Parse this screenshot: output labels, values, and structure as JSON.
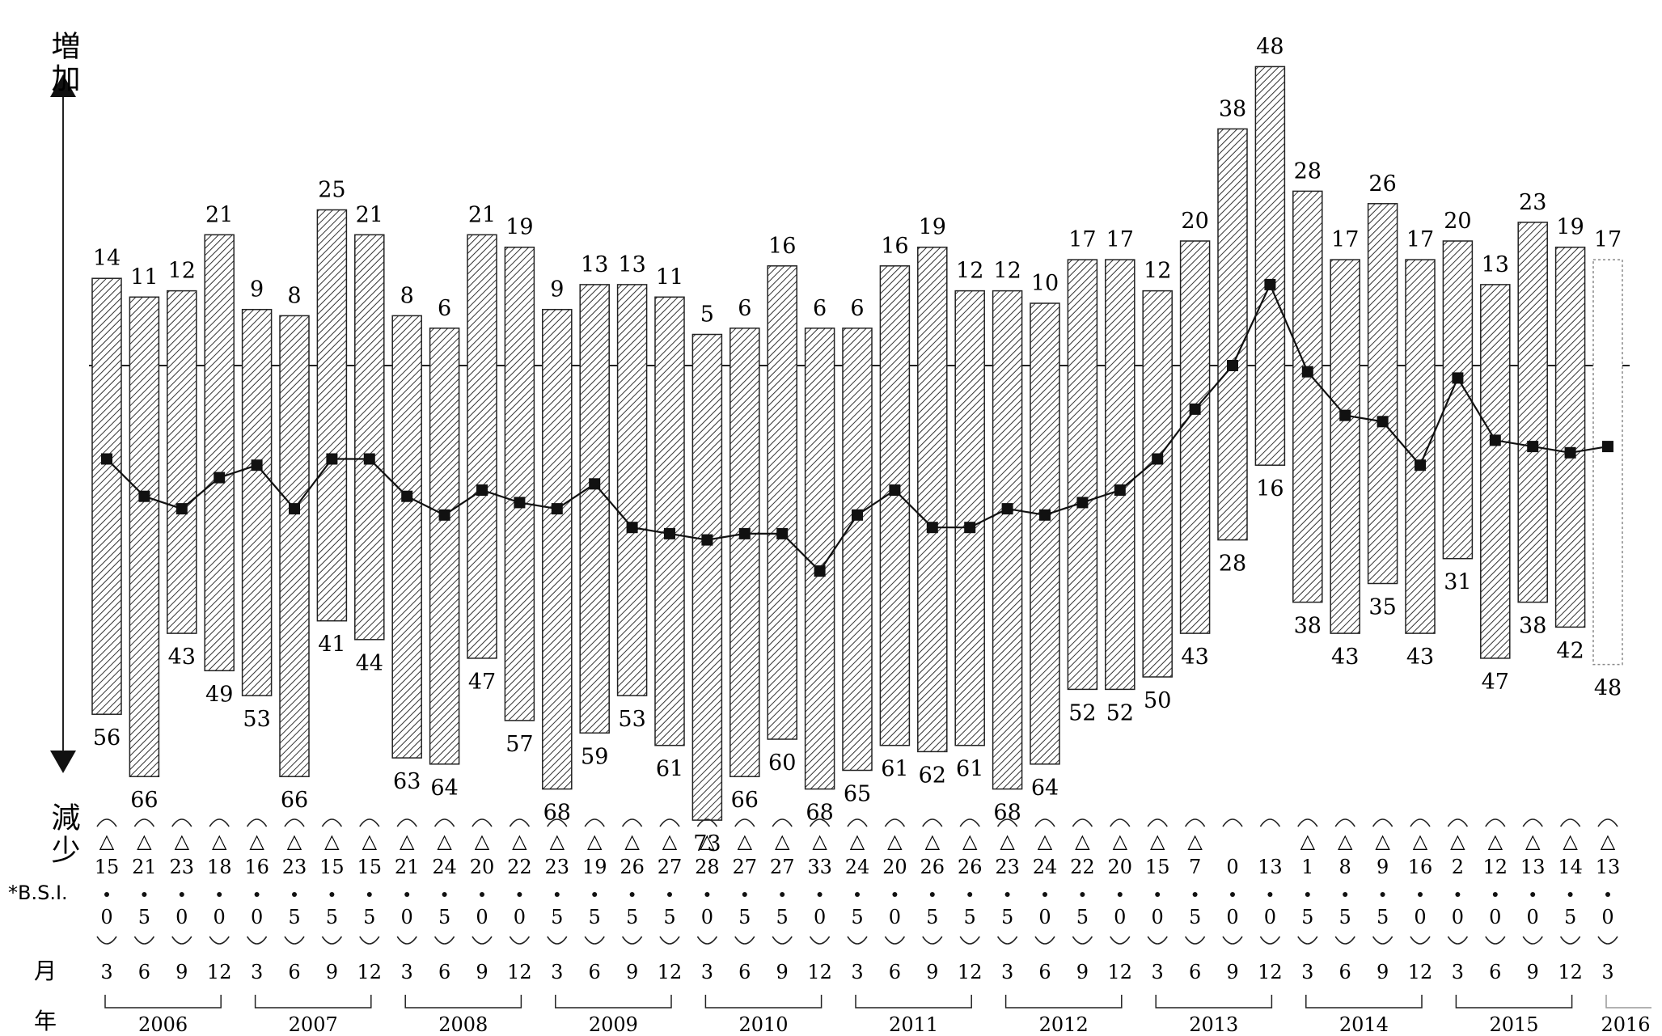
{
  "chart_data": {
    "type": "bar",
    "axis_labels": {
      "up": "増加",
      "down": "減少",
      "bsi": "*B.S.I.",
      "month": "月",
      "year": "年"
    },
    "periods": [
      {
        "m": "3",
        "y": "2006"
      },
      {
        "m": "6",
        "y": "2006"
      },
      {
        "m": "9",
        "y": "2006"
      },
      {
        "m": "12",
        "y": "2006"
      },
      {
        "m": "3",
        "y": "2007"
      },
      {
        "m": "6",
        "y": "2007"
      },
      {
        "m": "9",
        "y": "2007"
      },
      {
        "m": "12",
        "y": "2007"
      },
      {
        "m": "3",
        "y": "2008"
      },
      {
        "m": "6",
        "y": "2008"
      },
      {
        "m": "9",
        "y": "2008"
      },
      {
        "m": "12",
        "y": "2008"
      },
      {
        "m": "3",
        "y": "2009"
      },
      {
        "m": "6",
        "y": "2009"
      },
      {
        "m": "9",
        "y": "2009"
      },
      {
        "m": "12",
        "y": "2009"
      },
      {
        "m": "3",
        "y": "2010"
      },
      {
        "m": "6",
        "y": "2010"
      },
      {
        "m": "9",
        "y": "2010"
      },
      {
        "m": "12",
        "y": "2010"
      },
      {
        "m": "3",
        "y": "2011"
      },
      {
        "m": "6",
        "y": "2011"
      },
      {
        "m": "9",
        "y": "2011"
      },
      {
        "m": "12",
        "y": "2011"
      },
      {
        "m": "3",
        "y": "2012"
      },
      {
        "m": "6",
        "y": "2012"
      },
      {
        "m": "9",
        "y": "2012"
      },
      {
        "m": "12",
        "y": "2012"
      },
      {
        "m": "3",
        "y": "2013"
      },
      {
        "m": "6",
        "y": "2013"
      },
      {
        "m": "9",
        "y": "2013"
      },
      {
        "m": "12",
        "y": "2013"
      },
      {
        "m": "3",
        "y": "2014"
      },
      {
        "m": "6",
        "y": "2014"
      },
      {
        "m": "9",
        "y": "2014"
      },
      {
        "m": "12",
        "y": "2014"
      },
      {
        "m": "3",
        "y": "2015"
      },
      {
        "m": "6",
        "y": "2015"
      },
      {
        "m": "9",
        "y": "2015"
      },
      {
        "m": "12",
        "y": "2015"
      },
      {
        "m": "3",
        "y": "2016"
      }
    ],
    "years": [
      "2006",
      "2007",
      "2008",
      "2009",
      "2010",
      "2011",
      "2012",
      "2013",
      "2014",
      "2015",
      "2016"
    ],
    "increase": [
      14,
      11,
      12,
      21,
      9,
      8,
      25,
      21,
      8,
      6,
      21,
      19,
      9,
      13,
      13,
      11,
      5,
      6,
      16,
      6,
      6,
      16,
      19,
      12,
      12,
      10,
      17,
      17,
      12,
      20,
      38,
      48,
      28,
      17,
      26,
      17,
      20,
      13,
      23,
      19,
      17
    ],
    "decrease": [
      56,
      66,
      43,
      49,
      53,
      66,
      41,
      44,
      63,
      64,
      47,
      57,
      68,
      59,
      53,
      61,
      73,
      66,
      60,
      68,
      65,
      61,
      62,
      61,
      68,
      64,
      52,
      52,
      50,
      43,
      28,
      16,
      38,
      43,
      35,
      43,
      31,
      47,
      38,
      42,
      48
    ],
    "bsi": [
      -15,
      -21,
      -23,
      -18,
      -16,
      -23,
      -15,
      -15,
      -21,
      -24,
      -20,
      -22,
      -23,
      -19,
      -26,
      -27,
      -28,
      -27,
      -27,
      -33,
      -24,
      -20,
      -26,
      -26,
      -23,
      -24,
      -22,
      -20,
      -15,
      -7,
      0,
      13,
      -1,
      -8,
      -9,
      -16,
      -2,
      -12,
      -13,
      -14,
      -13
    ],
    "bsi_labels": [
      {
        "tri": "△",
        "int": "15",
        "dec": "0"
      },
      {
        "tri": "△",
        "int": "21",
        "dec": "5"
      },
      {
        "tri": "△",
        "int": "23",
        "dec": "0"
      },
      {
        "tri": "△",
        "int": "18",
        "dec": "0"
      },
      {
        "tri": "△",
        "int": "16",
        "dec": "0"
      },
      {
        "tri": "△",
        "int": "23",
        "dec": "5"
      },
      {
        "tri": "△",
        "int": "15",
        "dec": "5"
      },
      {
        "tri": "△",
        "int": "15",
        "dec": "5"
      },
      {
        "tri": "△",
        "int": "21",
        "dec": "0"
      },
      {
        "tri": "△",
        "int": "24",
        "dec": "5"
      },
      {
        "tri": "△",
        "int": "20",
        "dec": "0"
      },
      {
        "tri": "△",
        "int": "22",
        "dec": "0"
      },
      {
        "tri": "△",
        "int": "23",
        "dec": "5"
      },
      {
        "tri": "△",
        "int": "19",
        "dec": "5"
      },
      {
        "tri": "△",
        "int": "26",
        "dec": "5"
      },
      {
        "tri": "△",
        "int": "27",
        "dec": "5"
      },
      {
        "tri": "△",
        "int": "28",
        "dec": "0"
      },
      {
        "tri": "△",
        "int": "27",
        "dec": "5"
      },
      {
        "tri": "△",
        "int": "27",
        "dec": "5"
      },
      {
        "tri": "△",
        "int": "33",
        "dec": "0"
      },
      {
        "tri": "△",
        "int": "24",
        "dec": "5"
      },
      {
        "tri": "△",
        "int": "20",
        "dec": "0"
      },
      {
        "tri": "△",
        "int": "26",
        "dec": "5"
      },
      {
        "tri": "△",
        "int": "26",
        "dec": "5"
      },
      {
        "tri": "△",
        "int": "23",
        "dec": "5"
      },
      {
        "tri": "△",
        "int": "24",
        "dec": "0"
      },
      {
        "tri": "△",
        "int": "22",
        "dec": "5"
      },
      {
        "tri": "△",
        "int": "20",
        "dec": "0"
      },
      {
        "tri": "△",
        "int": "15",
        "dec": "0"
      },
      {
        "tri": "△",
        "int": "7",
        "dec": "5"
      },
      {
        "tri": "",
        "int": "0",
        "dec": "0"
      },
      {
        "tri": "",
        "int": "13",
        "dec": "0"
      },
      {
        "tri": "△",
        "int": "1",
        "dec": "5"
      },
      {
        "tri": "△",
        "int": "8",
        "dec": "5"
      },
      {
        "tri": "△",
        "int": "9",
        "dec": "5"
      },
      {
        "tri": "△",
        "int": "16",
        "dec": "0"
      },
      {
        "tri": "△",
        "int": "2",
        "dec": "0"
      },
      {
        "tri": "△",
        "int": "12",
        "dec": "0"
      },
      {
        "tri": "△",
        "int": "13",
        "dec": "0"
      },
      {
        "tri": "△",
        "int": "14",
        "dec": "5"
      },
      {
        "tri": "△",
        "int": "13",
        "dec": "0"
      }
    ],
    "last_bar_style": "dotted",
    "grid": false
  }
}
